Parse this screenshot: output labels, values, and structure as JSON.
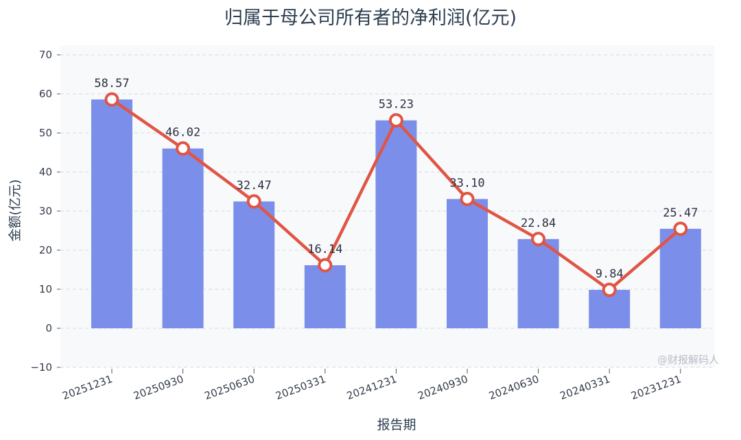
{
  "chart_data": {
    "type": "bar",
    "title": "归属于母公司所有者的净利润(亿元)",
    "xlabel": "报告期",
    "ylabel": "金额(亿元)",
    "categories": [
      "20251231",
      "20250930",
      "20250630",
      "20250331",
      "20241231",
      "20240930",
      "20240630",
      "20240331",
      "20231231"
    ],
    "series": [
      {
        "type": "bar",
        "values": [
          58.57,
          46.02,
          32.47,
          16.14,
          53.23,
          33.1,
          22.84,
          9.84,
          25.47
        ],
        "color": "#7b8fea"
      },
      {
        "type": "line",
        "values": [
          58.57,
          46.02,
          32.47,
          16.14,
          53.23,
          33.1,
          22.84,
          9.84,
          25.47
        ],
        "color": "#e05545"
      }
    ],
    "data_labels": [
      "58.57",
      "46.02",
      "32.47",
      "16.14",
      "53.23",
      "33.10",
      "22.84",
      "9.84",
      "25.47"
    ],
    "yticks": [
      -10,
      0,
      10,
      20,
      30,
      40,
      50,
      60,
      70
    ],
    "ylim": [
      -10,
      70
    ],
    "grid": true,
    "watermark": "@财报解码人"
  }
}
